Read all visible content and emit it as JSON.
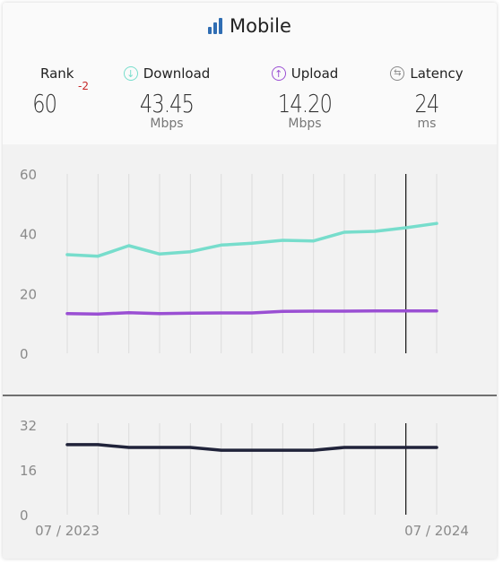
{
  "header": {
    "title": "Mobile",
    "rank": {
      "label": "Rank",
      "value": "60",
      "delta": "-2"
    },
    "download": {
      "label": "Download",
      "value": "43.45",
      "unit": "Mbps"
    },
    "upload": {
      "label": "Upload",
      "value": "14.20",
      "unit": "Mbps"
    },
    "latency": {
      "label": "Latency",
      "value": "24",
      "unit": "ms"
    }
  },
  "colors": {
    "download": "#77ddcc",
    "upload": "#9a4fd3",
    "latency": "#20233a",
    "brand": "#2f6db3",
    "rank_delta": "#c62828"
  },
  "icons": {
    "title": "signal-bars-icon",
    "download": "download-arrow-icon",
    "upload": "upload-arrow-icon",
    "latency": "latency-arrows-icon"
  },
  "chart_data": [
    {
      "type": "line",
      "x": [
        "07/2023",
        "08/2023",
        "09/2023",
        "10/2023",
        "11/2023",
        "12/2023",
        "01/2024",
        "02/2024",
        "03/2024",
        "04/2024",
        "05/2024",
        "06/2024",
        "07/2024"
      ],
      "series": [
        {
          "name": "Download",
          "values": [
            33.0,
            32.5,
            36.0,
            33.2,
            34.0,
            36.2,
            36.8,
            37.8,
            37.6,
            40.5,
            40.8,
            42.0,
            43.45
          ]
        },
        {
          "name": "Upload",
          "values": [
            13.3,
            13.1,
            13.6,
            13.3,
            13.4,
            13.5,
            13.5,
            14.0,
            14.1,
            14.1,
            14.2,
            14.2,
            14.2
          ]
        }
      ],
      "yticks": [
        "0",
        "20",
        "40",
        "60"
      ],
      "ylim": [
        0,
        60
      ],
      "grid": true,
      "marker_index": 11
    },
    {
      "type": "line",
      "x": [
        "07/2023",
        "08/2023",
        "09/2023",
        "10/2023",
        "11/2023",
        "12/2023",
        "01/2024",
        "02/2024",
        "03/2024",
        "04/2024",
        "05/2024",
        "06/2024",
        "07/2024"
      ],
      "series": [
        {
          "name": "Latency",
          "values": [
            25,
            25,
            24,
            24,
            24,
            23,
            23,
            23,
            23,
            24,
            24,
            24,
            24
          ]
        }
      ],
      "yticks": [
        "0",
        "16",
        "32"
      ],
      "ylim": [
        0,
        32
      ],
      "grid": true,
      "marker_index": 11,
      "xtick_labels": [
        "07 / 2023",
        "07 / 2024"
      ]
    }
  ]
}
